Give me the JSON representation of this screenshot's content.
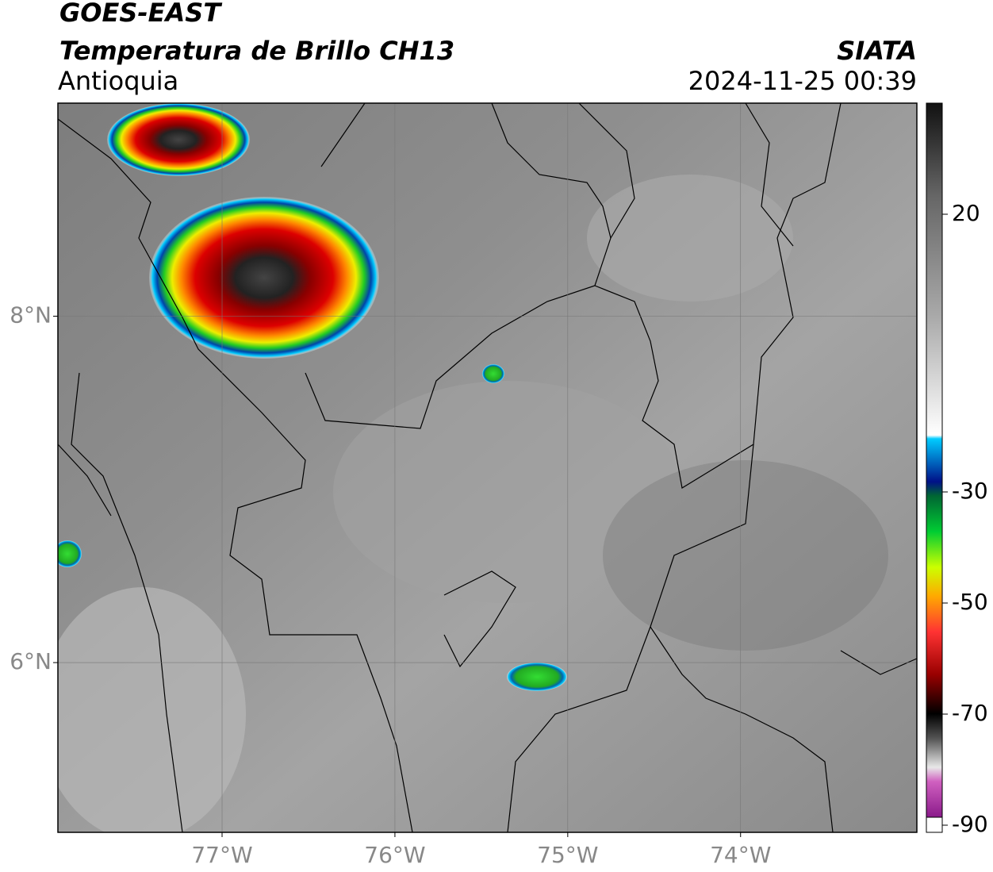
{
  "header": {
    "title": "GOES-EAST",
    "subtitle": "Temperatura de Brillo CH13",
    "region": "Antioquia",
    "source": "SIATA",
    "datetime": "2024-11-25 00:39"
  },
  "map": {
    "xlim": [
      -77.95,
      -72.98
    ],
    "ylim": [
      5.02,
      9.23
    ],
    "xticks": [
      {
        "value": -77,
        "label": "77°W"
      },
      {
        "value": -76,
        "label": "76°W"
      },
      {
        "value": -75,
        "label": "75°W"
      },
      {
        "value": -74,
        "label": "74°W"
      }
    ],
    "yticks": [
      {
        "value": 8,
        "label": "8°N"
      },
      {
        "value": 6,
        "label": "6°N"
      }
    ],
    "grid": true
  },
  "colorbar": {
    "lim": [
      -90,
      40
    ],
    "ticks": [
      20,
      -30,
      -50,
      -70,
      -90
    ]
  }
}
